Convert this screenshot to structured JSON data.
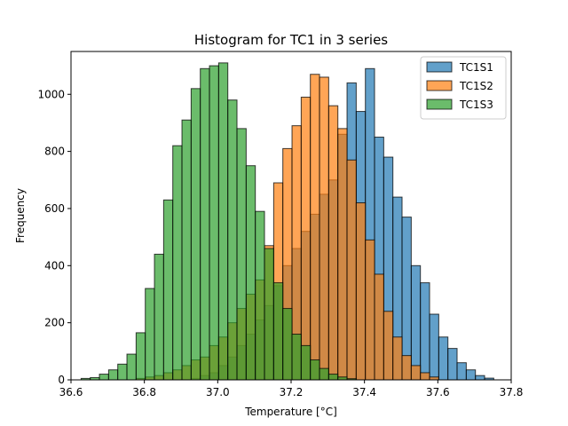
{
  "chart_data": {
    "type": "bar",
    "title": "Histogram for TC1 in 3 series",
    "xlabel": "Temperature [°C]",
    "ylabel": "Frequency",
    "xlim": [
      36.6,
      37.8
    ],
    "ylim": [
      0,
      1150
    ],
    "xticks": [
      "36.6",
      "36.8",
      "37.0",
      "37.2",
      "37.4",
      "37.6",
      "37.8"
    ],
    "yticks": [
      "0",
      "200",
      "400",
      "600",
      "800",
      "1000"
    ],
    "legend_position": "top-right",
    "grid": false,
    "series": [
      {
        "name": "TC1S1",
        "color": "#1f77b4",
        "bins": [
          [
            36.94,
            5
          ],
          [
            36.965,
            15
          ],
          [
            36.99,
            25
          ],
          [
            37.015,
            50
          ],
          [
            37.04,
            80
          ],
          [
            37.065,
            120
          ],
          [
            37.09,
            160
          ],
          [
            37.115,
            210
          ],
          [
            37.14,
            260
          ],
          [
            37.165,
            330
          ],
          [
            37.19,
            400
          ],
          [
            37.215,
            460
          ],
          [
            37.24,
            520
          ],
          [
            37.265,
            580
          ],
          [
            37.29,
            650
          ],
          [
            37.315,
            700
          ],
          [
            37.34,
            860
          ],
          [
            37.365,
            1040
          ],
          [
            37.39,
            940
          ],
          [
            37.415,
            1090
          ],
          [
            37.44,
            850
          ],
          [
            37.465,
            780
          ],
          [
            37.49,
            640
          ],
          [
            37.515,
            570
          ],
          [
            37.54,
            400
          ],
          [
            37.565,
            340
          ],
          [
            37.59,
            230
          ],
          [
            37.615,
            150
          ],
          [
            37.64,
            110
          ],
          [
            37.665,
            60
          ],
          [
            37.69,
            35
          ],
          [
            37.715,
            15
          ],
          [
            37.74,
            6
          ]
        ]
      },
      {
        "name": "TC1S2",
        "color": "#ff7f0e",
        "bins": [
          [
            36.79,
            5
          ],
          [
            36.815,
            10
          ],
          [
            36.84,
            15
          ],
          [
            36.865,
            25
          ],
          [
            36.89,
            35
          ],
          [
            36.915,
            50
          ],
          [
            36.94,
            70
          ],
          [
            36.965,
            80
          ],
          [
            36.99,
            120
          ],
          [
            37.015,
            150
          ],
          [
            37.04,
            200
          ],
          [
            37.065,
            250
          ],
          [
            37.09,
            300
          ],
          [
            37.115,
            350
          ],
          [
            37.14,
            470
          ],
          [
            37.165,
            690
          ],
          [
            37.19,
            810
          ],
          [
            37.215,
            890
          ],
          [
            37.24,
            990
          ],
          [
            37.265,
            1070
          ],
          [
            37.29,
            1060
          ],
          [
            37.315,
            960
          ],
          [
            37.34,
            880
          ],
          [
            37.365,
            770
          ],
          [
            37.39,
            620
          ],
          [
            37.415,
            490
          ],
          [
            37.44,
            370
          ],
          [
            37.465,
            240
          ],
          [
            37.49,
            150
          ],
          [
            37.515,
            85
          ],
          [
            37.54,
            50
          ],
          [
            37.565,
            25
          ],
          [
            37.59,
            10
          ]
        ]
      },
      {
        "name": "TC1S3",
        "color": "#2ca02c",
        "bins": [
          [
            36.64,
            5
          ],
          [
            36.665,
            8
          ],
          [
            36.69,
            20
          ],
          [
            36.715,
            35
          ],
          [
            36.74,
            55
          ],
          [
            36.765,
            90
          ],
          [
            36.79,
            165
          ],
          [
            36.815,
            320
          ],
          [
            36.84,
            440
          ],
          [
            36.865,
            630
          ],
          [
            36.89,
            820
          ],
          [
            36.915,
            910
          ],
          [
            36.94,
            1020
          ],
          [
            36.965,
            1090
          ],
          [
            36.99,
            1100
          ],
          [
            37.015,
            1110
          ],
          [
            37.04,
            980
          ],
          [
            37.065,
            880
          ],
          [
            37.09,
            750
          ],
          [
            37.115,
            590
          ],
          [
            37.14,
            460
          ],
          [
            37.165,
            340
          ],
          [
            37.19,
            250
          ],
          [
            37.215,
            160
          ],
          [
            37.24,
            120
          ],
          [
            37.265,
            70
          ],
          [
            37.29,
            40
          ],
          [
            37.315,
            20
          ],
          [
            37.34,
            10
          ],
          [
            37.365,
            4
          ]
        ]
      }
    ]
  }
}
